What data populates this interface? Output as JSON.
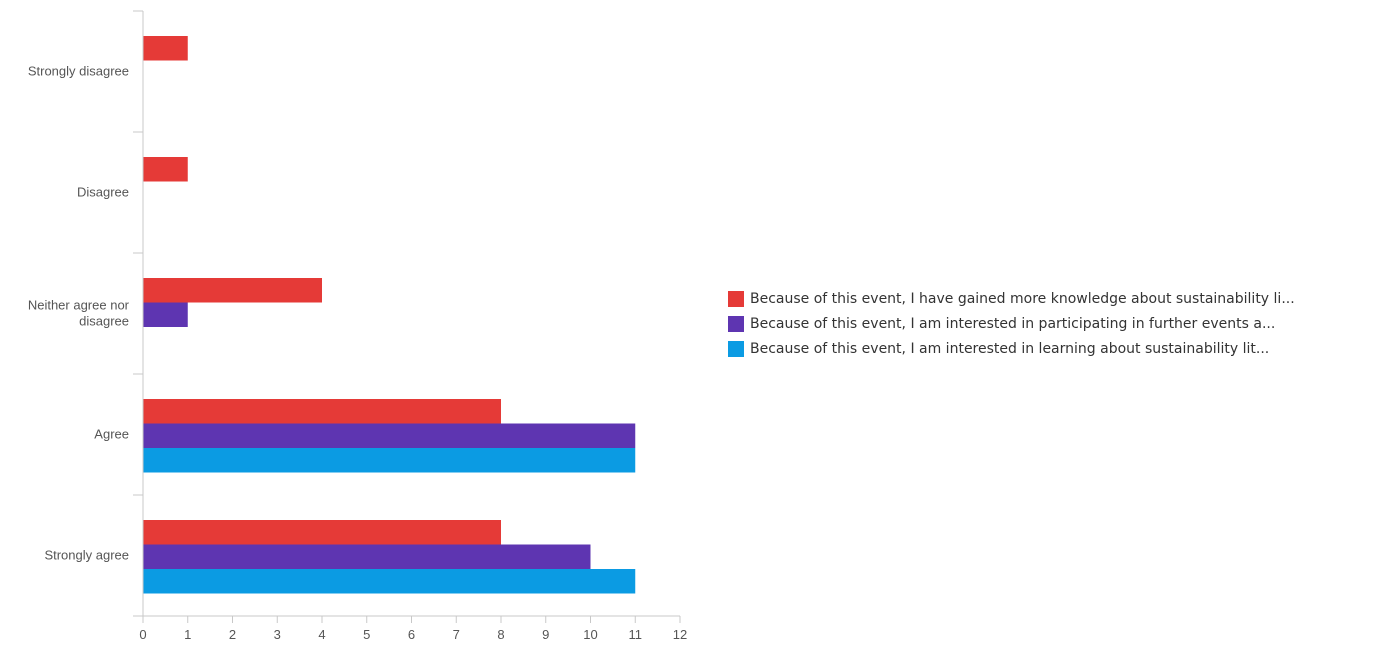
{
  "chart_data": {
    "type": "bar",
    "orientation": "horizontal",
    "categories": [
      "Strongly disagree",
      "Disagree",
      "Neither agree nor disagree",
      "Agree",
      "Strongly agree"
    ],
    "category_lines": [
      [
        "Strongly disagree"
      ],
      [
        "Disagree"
      ],
      [
        "Neither agree nor",
        "disagree"
      ],
      [
        "Agree"
      ],
      [
        "Strongly agree"
      ]
    ],
    "series": [
      {
        "name": "Because of this event, I have gained more knowledge about sustainability li...",
        "color": "#e53a37",
        "values": [
          1,
          1,
          4,
          8,
          8
        ]
      },
      {
        "name": "Because of this event, I am interested in participating in further events a...",
        "color": "#5e35b1",
        "values": [
          0,
          0,
          1,
          11,
          10
        ]
      },
      {
        "name": "Because of this event, I am interested in learning about sustainability lit...",
        "color": "#0b9be3",
        "values": [
          0,
          0,
          0,
          11,
          11
        ]
      }
    ],
    "x_ticks": [
      "0",
      "1",
      "2",
      "3",
      "4",
      "5",
      "6",
      "7",
      "8",
      "9",
      "10",
      "11",
      "12"
    ],
    "xlim": [
      0,
      12
    ],
    "grid": false,
    "legend_position": "right"
  }
}
